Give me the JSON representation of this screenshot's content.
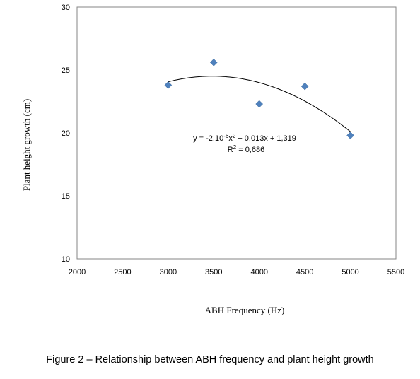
{
  "chart_data": {
    "type": "scatter",
    "xlabel": "ABH Frequency (Hz)",
    "ylabel": "Plant height growth (cm)",
    "xlim": [
      2000,
      5500
    ],
    "ylim": [
      10,
      30
    ],
    "x_ticks": [
      2000,
      2500,
      3000,
      3500,
      4000,
      4500,
      5000,
      5500
    ],
    "y_ticks": [
      10,
      15,
      20,
      25,
      30
    ],
    "grid": false,
    "legend": "none",
    "marker": "diamond",
    "marker_color": "#4F81BD",
    "points": [
      {
        "x": 3000,
        "y": 23.8
      },
      {
        "x": 3500,
        "y": 25.6
      },
      {
        "x": 4000,
        "y": 22.3
      },
      {
        "x": 4500,
        "y": 23.7
      },
      {
        "x": 5000,
        "y": 19.8
      }
    ],
    "trendline": {
      "type": "polynomial",
      "order": 2,
      "x_range": [
        3000,
        5000
      ],
      "equation_parts": [
        "y = -2.10",
        "-6",
        "x",
        "2",
        " + 0,013x + 1,319"
      ],
      "r2_parts": [
        "R",
        "2",
        " = 0,686"
      ]
    }
  },
  "caption": "Figure 2 – Relationship between ABH frequency and plant height growth"
}
